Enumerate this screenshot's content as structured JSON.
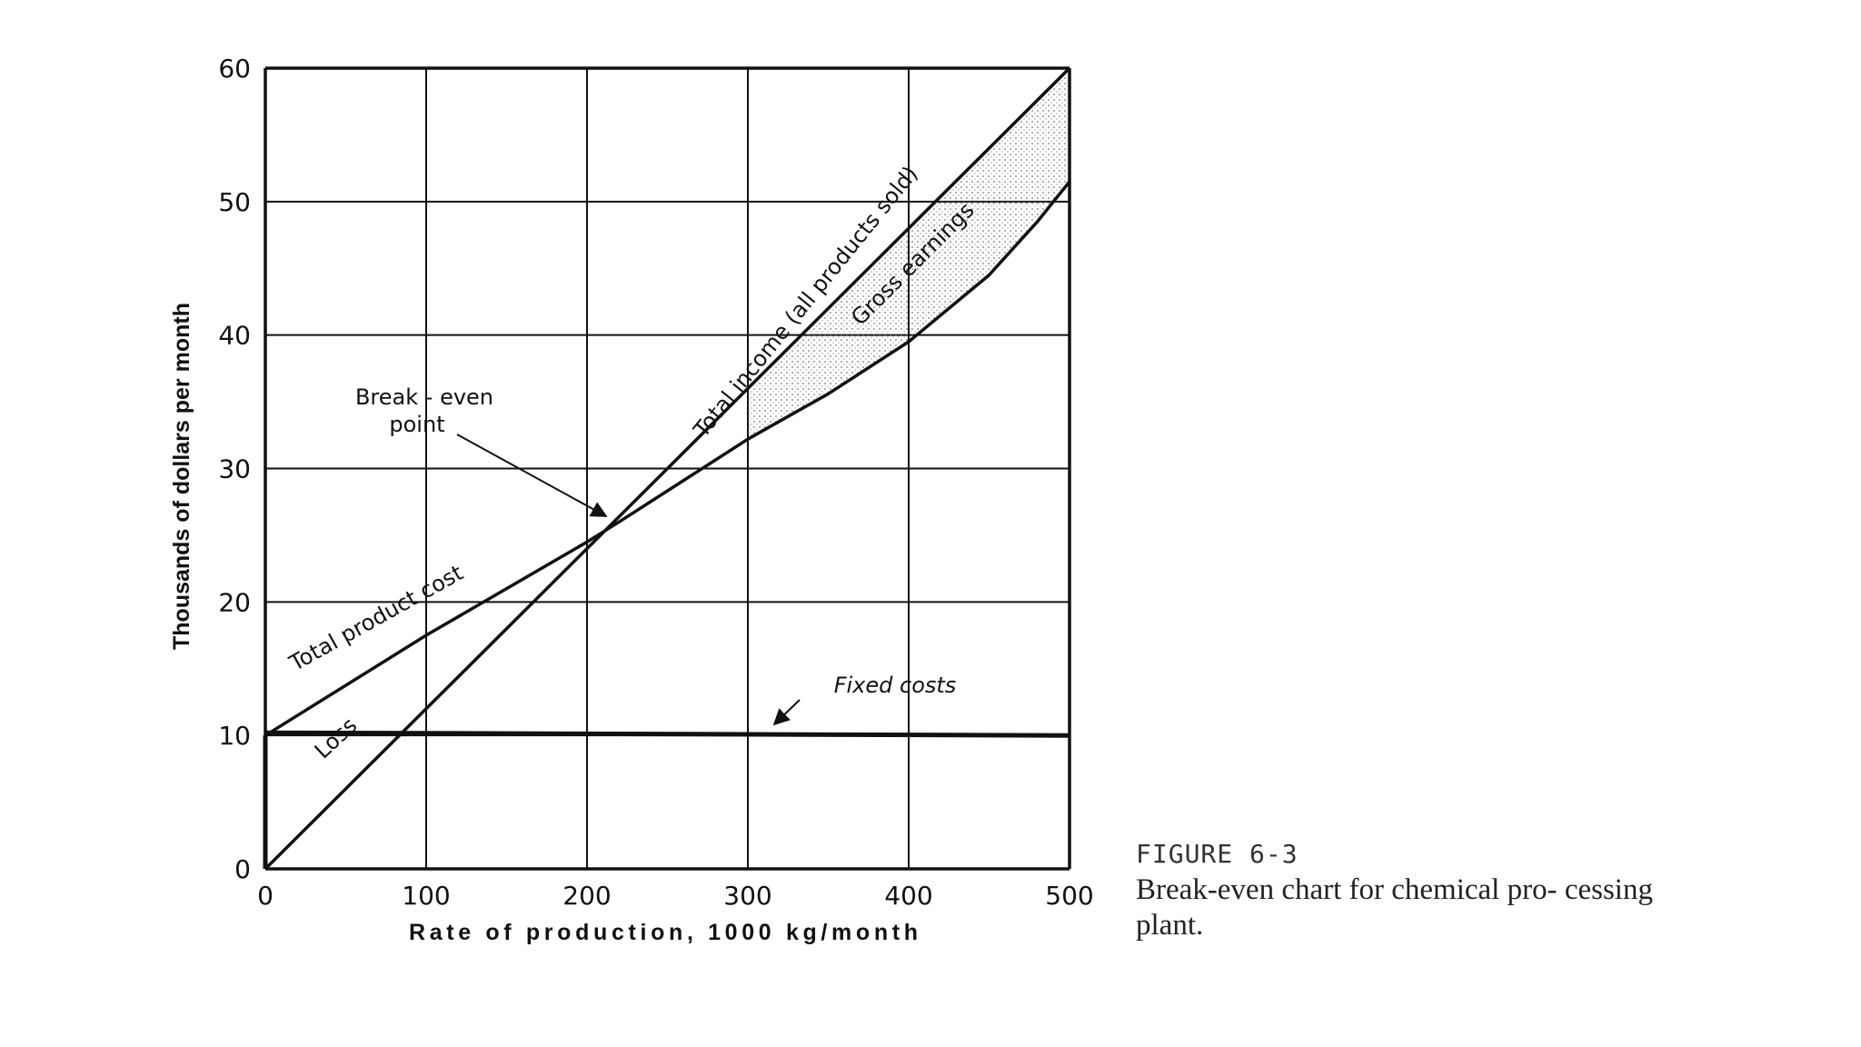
{
  "chart_data": {
    "type": "line",
    "title": "",
    "xlabel": "Rate of production, 1000 kg/month",
    "ylabel": "Thousands of dollars per month",
    "xlim": [
      0,
      500
    ],
    "ylim": [
      0,
      60
    ],
    "grid": true,
    "x_ticks": [
      "0",
      "100",
      "200",
      "300",
      "400",
      "500"
    ],
    "y_ticks": [
      "0",
      "10",
      "20",
      "30",
      "40",
      "50",
      "60"
    ],
    "series": [
      {
        "name": "Total income (all products sold)",
        "points": [
          [
            0,
            0
          ],
          [
            100,
            12
          ],
          [
            200,
            24
          ],
          [
            220,
            26.4
          ],
          [
            300,
            36
          ],
          [
            400,
            48
          ],
          [
            500,
            60
          ]
        ]
      },
      {
        "name": "Total product cost",
        "points": [
          [
            0,
            10
          ],
          [
            100,
            17.5
          ],
          [
            200,
            24.5
          ],
          [
            220,
            26
          ],
          [
            300,
            32.2
          ],
          [
            350,
            35.6
          ],
          [
            400,
            39.5
          ],
          [
            450,
            44.5
          ],
          [
            480,
            48.5
          ],
          [
            500,
            51.5
          ]
        ]
      },
      {
        "name": "Fixed costs",
        "points": [
          [
            0,
            10.2
          ],
          [
            500,
            10
          ]
        ]
      }
    ],
    "annotations": {
      "total_income": "Total income (all products sold)",
      "gross_earnings": "Gross earnings",
      "break_even_line1": "Break - even",
      "break_even_line2": "point",
      "total_product_cost": "Total product cost",
      "fixed_costs": "Fixed costs",
      "loss": "Loss"
    },
    "break_even_point": [
      220,
      26
    ]
  },
  "caption": {
    "figure_number": "FIGURE   6-3",
    "text": "Break-even chart for chemical pro- cessing   plant."
  }
}
